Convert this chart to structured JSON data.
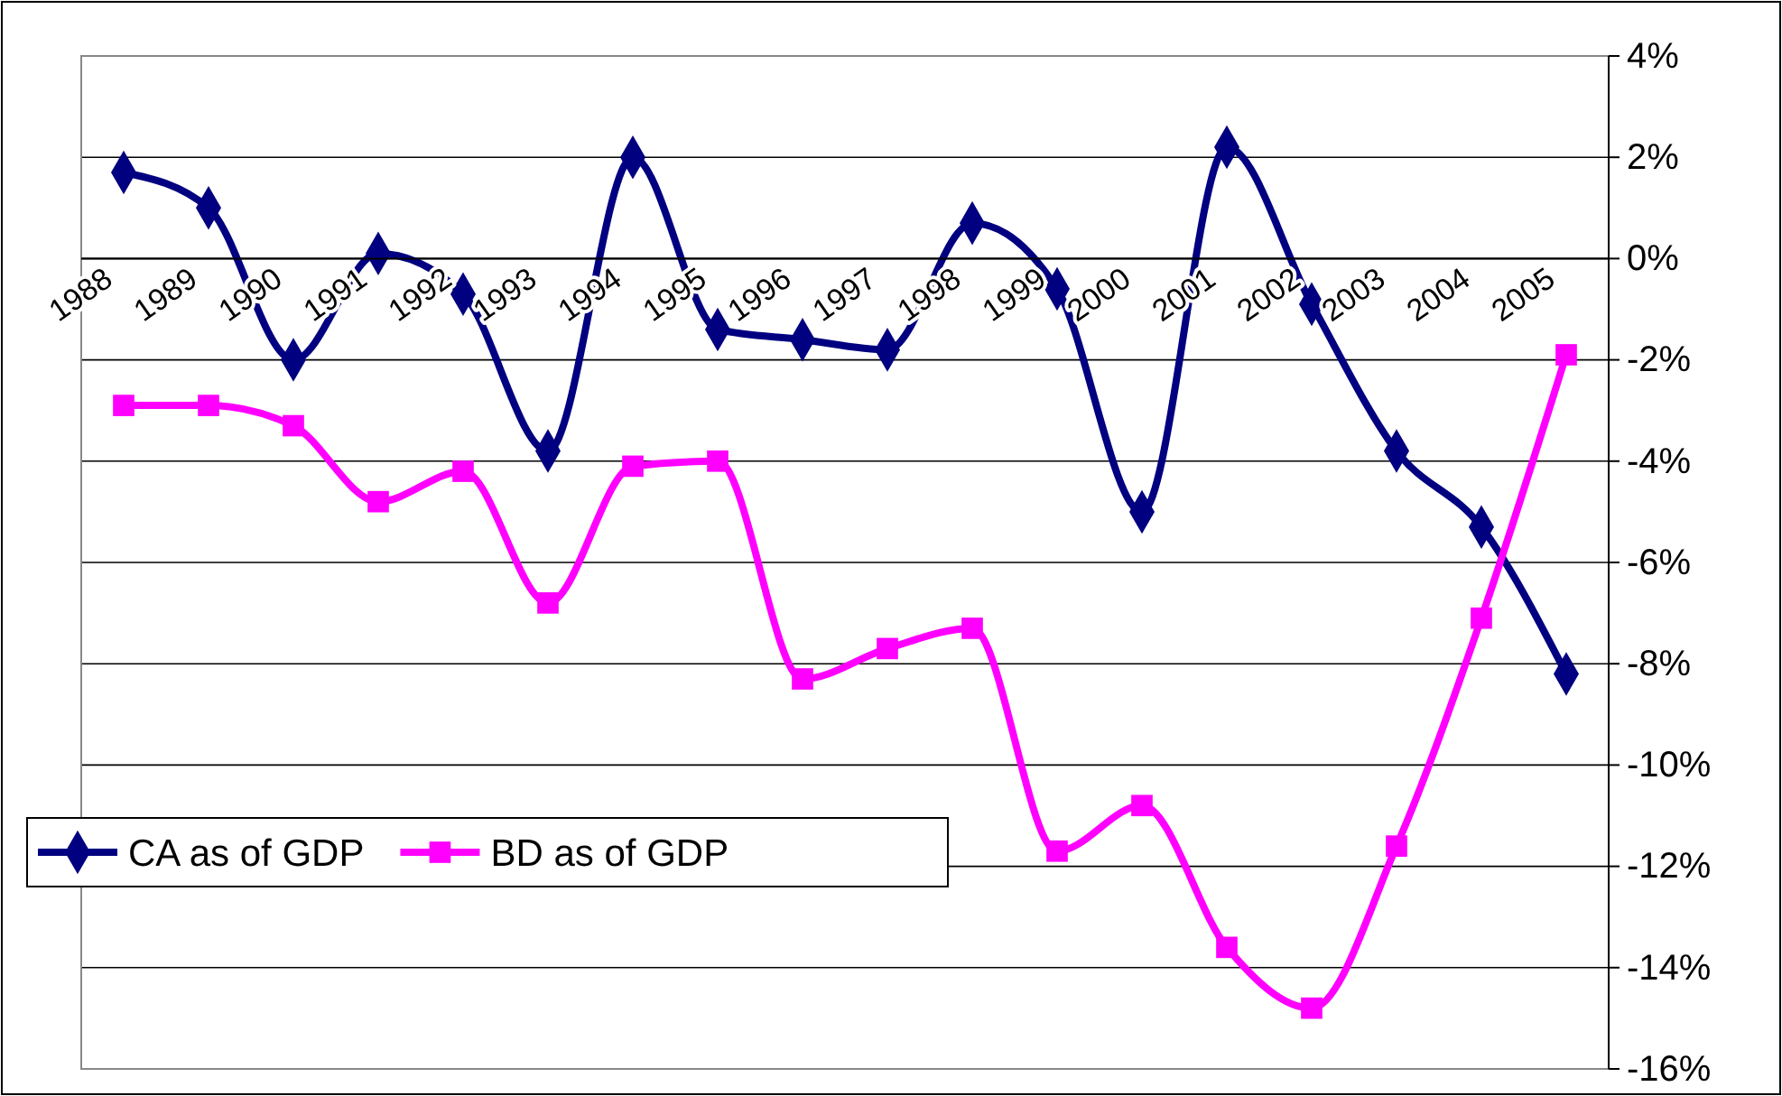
{
  "chart_data": {
    "type": "line",
    "categories": [
      "1988",
      "1989",
      "1990",
      "1991",
      "1992",
      "1993",
      "1994",
      "1995",
      "1996",
      "1997",
      "1998",
      "1999",
      "2000",
      "2001",
      "2002",
      "2003",
      "2004",
      "2005"
    ],
    "series": [
      {
        "name": "CA as of GDP",
        "color": "#000080",
        "marker": "diamond",
        "values": [
          1.7,
          1.0,
          -2.0,
          0.1,
          -0.7,
          -3.8,
          2.0,
          -1.4,
          -1.6,
          -1.8,
          0.7,
          -0.6,
          -5.0,
          2.2,
          -0.9,
          -3.8,
          -5.3,
          -8.2
        ]
      },
      {
        "name": "BD as of GDP",
        "color": "#ff00ff",
        "marker": "square",
        "values": [
          -2.9,
          -2.9,
          -3.3,
          -4.8,
          -4.2,
          -6.8,
          -4.1,
          -4.0,
          -8.3,
          -7.7,
          -7.3,
          -11.7,
          -10.8,
          -13.6,
          -14.8,
          -11.6,
          -7.1,
          -1.9
        ]
      }
    ],
    "ylim": [
      -16,
      4
    ],
    "yticks": [
      {
        "value": 4,
        "label": "4%"
      },
      {
        "value": 2,
        "label": "2%"
      },
      {
        "value": 0,
        "label": "0%"
      },
      {
        "value": -2,
        "label": "-2%"
      },
      {
        "value": -4,
        "label": "-4%"
      },
      {
        "value": -6,
        "label": "-6%"
      },
      {
        "value": -8,
        "label": "-8%"
      },
      {
        "value": -10,
        "label": "-10%"
      },
      {
        "value": -12,
        "label": "-12%"
      },
      {
        "value": -14,
        "label": "-14%"
      },
      {
        "value": -16,
        "label": "-16%"
      }
    ],
    "grid": "y",
    "legend": "bottom left",
    "line_style": "solid"
  }
}
